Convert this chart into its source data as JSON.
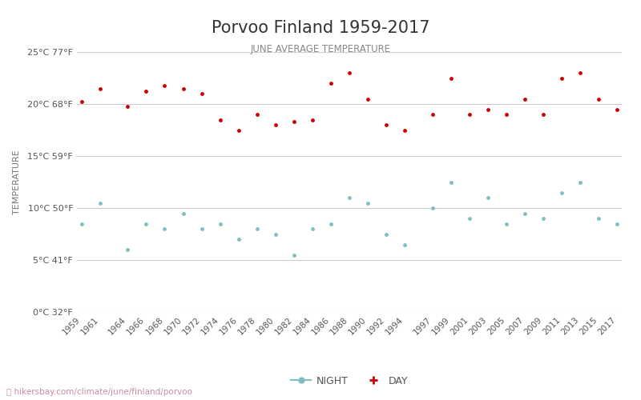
{
  "title": "Porvoo Finland 1959-2017",
  "subtitle": "JUNE AVERAGE TEMPERATURE",
  "ylabel": "TEMPERATURE",
  "watermark": "hikersbay.com/climate/june/finland/porvoo",
  "years": [
    1959,
    1961,
    1964,
    1966,
    1968,
    1970,
    1972,
    1974,
    1976,
    1978,
    1980,
    1982,
    1984,
    1986,
    1988,
    1990,
    1992,
    1994,
    1997,
    1999,
    2001,
    2003,
    2005,
    2007,
    2009,
    2011,
    2013,
    2015,
    2017
  ],
  "day_temps": [
    20.2,
    21.5,
    19.8,
    21.2,
    21.8,
    21.5,
    21.0,
    18.5,
    17.5,
    19.0,
    18.0,
    18.3,
    18.5,
    22.0,
    23.0,
    20.5,
    18.0,
    17.5,
    19.0,
    22.5,
    19.0,
    19.5,
    19.0,
    20.5,
    19.0,
    22.5,
    23.0,
    20.5,
    19.5
  ],
  "night_temps": [
    8.5,
    10.5,
    6.0,
    8.5,
    8.0,
    9.5,
    8.0,
    8.5,
    7.0,
    8.0,
    7.5,
    5.5,
    8.0,
    8.5,
    11.0,
    10.5,
    7.5,
    6.5,
    10.0,
    12.5,
    9.0,
    11.0,
    8.5,
    9.5,
    9.0,
    11.5,
    12.5,
    9.0,
    8.5
  ],
  "ylim": [
    0,
    25
  ],
  "yticks_c": [
    0,
    5,
    10,
    15,
    20,
    25
  ],
  "yticks_f": [
    32,
    41,
    50,
    59,
    68,
    77
  ],
  "day_color": "#cc0000",
  "night_color": "#7fbfbf",
  "grid_color": "#cccccc",
  "title_color": "#333333",
  "subtitle_color": "#888888",
  "ylabel_color": "#777777",
  "tick_label_color": "#555555",
  "watermark_color": "#cc88aa",
  "background_color": "#ffffff"
}
